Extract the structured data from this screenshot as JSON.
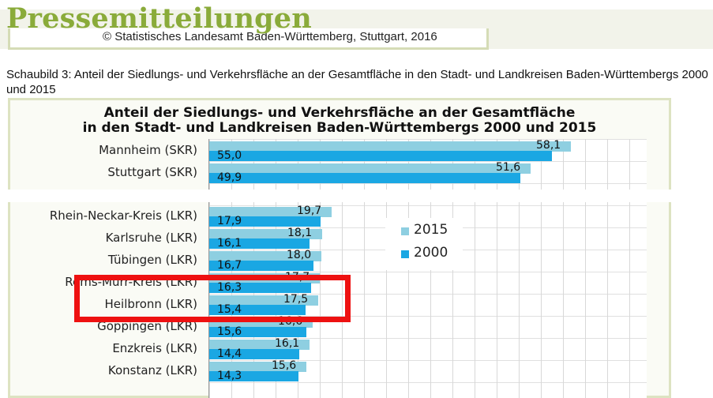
{
  "header": {
    "title": "Pressemitteilungen",
    "copyright": "© Statistisches Landesamt Baden-Württemberg, Stuttgart, 2016"
  },
  "caption": "Schaubild 3: Anteil der Siedlungs- und Verkehrsfläche an der Gesamtfläche in den Stadt- und Landkreisen Baden-Württembergs 2000 und 2015",
  "highlight": {
    "color": "#ee1111",
    "target": "Heilbronn (LKR)"
  },
  "chart_data": {
    "type": "bar",
    "orientation": "horizontal",
    "title_line1": "Anteil der Siedlungs- und Verkehrsfläche an der Gesamtfläche",
    "title_line2": "in den Stadt- und Landkreisen Baden-Württembergs 2000 und 2015",
    "categories": [
      "Mannheim (SKR)",
      "Stuttgart (SKR)",
      "Rhein-Neckar-Kreis (LKR)",
      "Karlsruhe (LKR)",
      "Tübingen (LKR)",
      "Rems-Murr-Kreis (LKR)",
      "Heilbronn (LKR)",
      "Göppingen (LKR)",
      "Enzkreis (LKR)",
      "Konstanz (LKR)"
    ],
    "series": [
      {
        "name": "2015",
        "color": "#8ecfe1",
        "values": [
          58.1,
          51.6,
          19.7,
          18.1,
          18.0,
          17.7,
          17.5,
          16.6,
          16.1,
          15.6
        ]
      },
      {
        "name": "2000",
        "color": "#1aa7e3",
        "values": [
          55.0,
          49.9,
          17.9,
          16.1,
          16.7,
          16.3,
          15.4,
          15.6,
          14.4,
          14.3
        ]
      }
    ],
    "value_labels_2015": [
      "58,1",
      "51,6",
      "19,7",
      "18,1",
      "18,0",
      "17,7",
      "17,5",
      "16,6",
      "16,1",
      "15,6"
    ],
    "value_labels_2000": [
      "55,0",
      "49,9",
      "17,9",
      "16,1",
      "16,7",
      "16,3",
      "15,4",
      "15,6",
      "14,4",
      "14,3"
    ],
    "legend": {
      "items": [
        "2015",
        "2000"
      ],
      "position": "right"
    },
    "grid": true,
    "xlim": [
      0,
      70
    ]
  }
}
